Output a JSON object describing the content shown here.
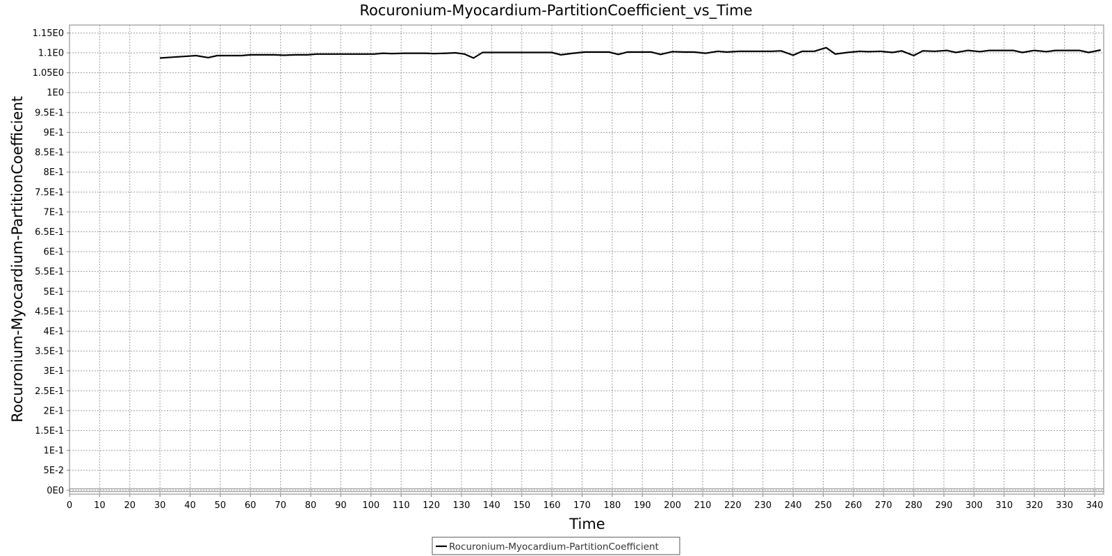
{
  "chart_data": {
    "type": "line",
    "title": "Rocuronium-Myocardium-PartitionCoefficient_vs_Time",
    "xlabel": "Time",
    "ylabel": "Rocuronium-Myocardium-PartitionCoefficient",
    "xlim": [
      0,
      343
    ],
    "ylim": [
      -0.01,
      1.17
    ],
    "x_ticks": [
      0,
      10,
      20,
      30,
      40,
      50,
      60,
      70,
      80,
      90,
      100,
      110,
      120,
      130,
      140,
      150,
      160,
      170,
      180,
      190,
      200,
      210,
      220,
      230,
      240,
      250,
      260,
      270,
      280,
      290,
      300,
      310,
      320,
      330,
      340
    ],
    "y_ticks": [
      {
        "value": 0,
        "label": "0E0"
      },
      {
        "value": 0.05,
        "label": "5E-2"
      },
      {
        "value": 0.1,
        "label": "1E-1"
      },
      {
        "value": 0.15,
        "label": "1.5E-1"
      },
      {
        "value": 0.2,
        "label": "2E-1"
      },
      {
        "value": 0.25,
        "label": "2.5E-1"
      },
      {
        "value": 0.3,
        "label": "3E-1"
      },
      {
        "value": 0.35,
        "label": "3.5E-1"
      },
      {
        "value": 0.4,
        "label": "4E-1"
      },
      {
        "value": 0.45,
        "label": "4.5E-1"
      },
      {
        "value": 0.5,
        "label": "5E-1"
      },
      {
        "value": 0.55,
        "label": "5.5E-1"
      },
      {
        "value": 0.6,
        "label": "6E-1"
      },
      {
        "value": 0.65,
        "label": "6.5E-1"
      },
      {
        "value": 0.7,
        "label": "7E-1"
      },
      {
        "value": 0.75,
        "label": "7.5E-1"
      },
      {
        "value": 0.8,
        "label": "8E-1"
      },
      {
        "value": 0.85,
        "label": "8.5E-1"
      },
      {
        "value": 0.9,
        "label": "9E-1"
      },
      {
        "value": 0.95,
        "label": "9.5E-1"
      },
      {
        "value": 1.0,
        "label": "1E0"
      },
      {
        "value": 1.05,
        "label": "1.05E0"
      },
      {
        "value": 1.1,
        "label": "1.1E0"
      },
      {
        "value": 1.15,
        "label": "1.15E0"
      }
    ],
    "grid": true,
    "legend_position": "bottom-center",
    "series": [
      {
        "name": "Rocuronium-Myocardium-PartitionCoefficient",
        "color": "#000000",
        "points": [
          [
            30,
            1.087
          ],
          [
            34,
            1.089
          ],
          [
            38,
            1.091
          ],
          [
            42,
            1.093
          ],
          [
            46,
            1.088
          ],
          [
            49,
            1.093
          ],
          [
            53,
            1.093
          ],
          [
            57,
            1.093
          ],
          [
            60,
            1.095
          ],
          [
            64,
            1.095
          ],
          [
            68,
            1.095
          ],
          [
            71,
            1.094
          ],
          [
            75,
            1.095
          ],
          [
            79,
            1.095
          ],
          [
            82,
            1.097
          ],
          [
            86,
            1.097
          ],
          [
            90,
            1.097
          ],
          [
            94,
            1.097
          ],
          [
            97,
            1.097
          ],
          [
            101,
            1.097
          ],
          [
            104,
            1.099
          ],
          [
            107,
            1.098
          ],
          [
            111,
            1.099
          ],
          [
            115,
            1.099
          ],
          [
            118,
            1.099
          ],
          [
            121,
            1.098
          ],
          [
            125,
            1.099
          ],
          [
            128,
            1.1
          ],
          [
            131,
            1.097
          ],
          [
            134,
            1.087
          ],
          [
            137,
            1.101
          ],
          [
            141,
            1.101
          ],
          [
            145,
            1.101
          ],
          [
            149,
            1.101
          ],
          [
            152,
            1.101
          ],
          [
            156,
            1.101
          ],
          [
            160,
            1.101
          ],
          [
            163,
            1.095
          ],
          [
            167,
            1.099
          ],
          [
            171,
            1.102
          ],
          [
            175,
            1.102
          ],
          [
            179,
            1.102
          ],
          [
            182,
            1.096
          ],
          [
            185,
            1.102
          ],
          [
            189,
            1.102
          ],
          [
            193,
            1.102
          ],
          [
            196,
            1.096
          ],
          [
            200,
            1.103
          ],
          [
            204,
            1.102
          ],
          [
            207,
            1.102
          ],
          [
            211,
            1.099
          ],
          [
            215,
            1.104
          ],
          [
            218,
            1.102
          ],
          [
            222,
            1.104
          ],
          [
            226,
            1.104
          ],
          [
            229,
            1.104
          ],
          [
            233,
            1.104
          ],
          [
            236,
            1.105
          ],
          [
            240,
            1.094
          ],
          [
            243,
            1.104
          ],
          [
            247,
            1.104
          ],
          [
            251,
            1.113
          ],
          [
            254,
            1.097
          ],
          [
            258,
            1.101
          ],
          [
            262,
            1.104
          ],
          [
            265,
            1.103
          ],
          [
            269,
            1.104
          ],
          [
            273,
            1.101
          ],
          [
            276,
            1.105
          ],
          [
            280,
            1.093
          ],
          [
            283,
            1.105
          ],
          [
            287,
            1.104
          ],
          [
            291,
            1.106
          ],
          [
            294,
            1.101
          ],
          [
            298,
            1.106
          ],
          [
            302,
            1.103
          ],
          [
            305,
            1.106
          ],
          [
            309,
            1.106
          ],
          [
            313,
            1.106
          ],
          [
            316,
            1.101
          ],
          [
            320,
            1.106
          ],
          [
            324,
            1.103
          ],
          [
            327,
            1.106
          ],
          [
            331,
            1.106
          ],
          [
            335,
            1.106
          ],
          [
            338,
            1.101
          ],
          [
            342,
            1.107
          ]
        ]
      }
    ]
  }
}
